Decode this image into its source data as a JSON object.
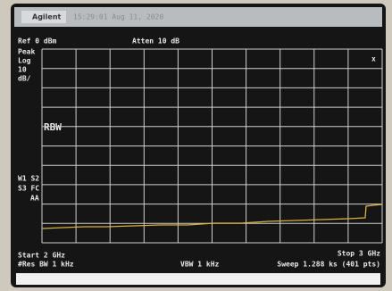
{
  "header": {
    "brand": "Agilent",
    "timestamp": "15:29:01 Aug 11, 2020"
  },
  "top": {
    "ref": "Ref 0 dBm",
    "atten": "Atten 10 dB"
  },
  "left": {
    "detector": "Peak",
    "scale": "Log",
    "scale_value": "10",
    "scale_unit": "dB/",
    "rbw": "RBW",
    "trace_mode_1": "W1 S2",
    "trace_mode_2": "S3 FC",
    "trace_mode_3": "AA"
  },
  "marker": "x",
  "bottom": {
    "start": "Start 2 GHz",
    "stop": "Stop 3 GHz",
    "res_bw": "#Res BW 1 kHz",
    "vbw": "VBW 1 kHz",
    "sweep": "Sweep 1.288 ks (401 pts)"
  }
}
